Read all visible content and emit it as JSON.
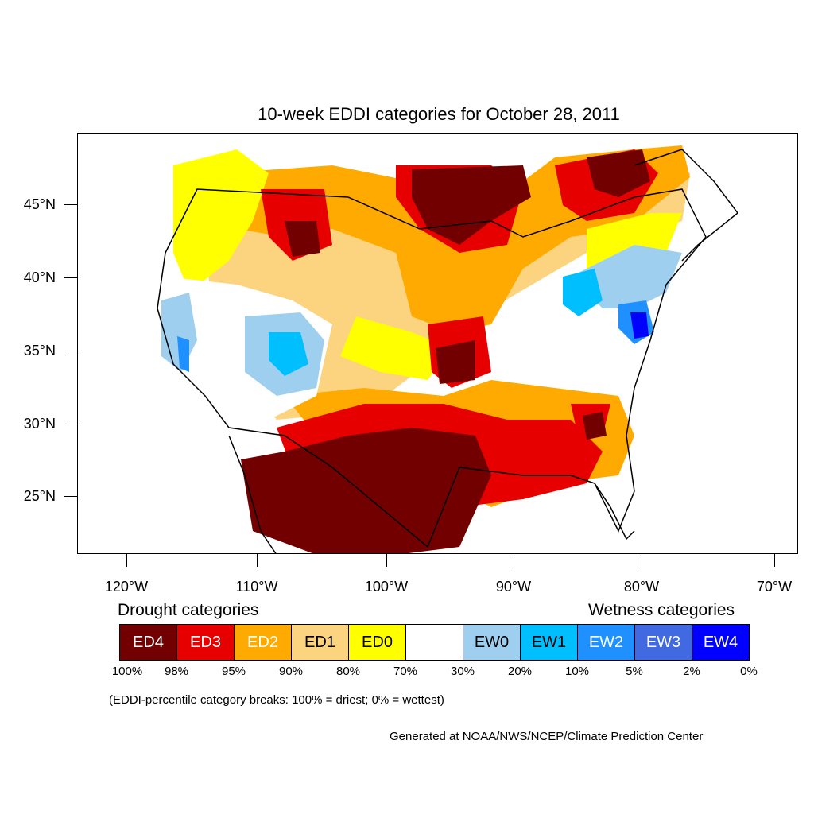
{
  "title": "10-week EDDI categories for October 28, 2011",
  "map": {
    "lat_labels": [
      "45°N",
      "40°N",
      "35°N",
      "30°N",
      "25°N"
    ],
    "lon_labels": [
      "120°W",
      "110°W",
      "100°W",
      "90°W",
      "80°W",
      "70°W"
    ]
  },
  "legend": {
    "drought_title": "Drought categories",
    "wetness_title": "Wetness categories",
    "categories": [
      {
        "label": "ED4",
        "color": "#730000",
        "text_color": "#ffffff"
      },
      {
        "label": "ED3",
        "color": "#e60000",
        "text_color": "#ffffff"
      },
      {
        "label": "ED2",
        "color": "#ffaa00",
        "text_color": "#ffffff"
      },
      {
        "label": "ED1",
        "color": "#fcd37f",
        "text_color": "#000000"
      },
      {
        "label": "ED0",
        "color": "#ffff00",
        "text_color": "#000000"
      },
      {
        "label": "",
        "color": "#ffffff",
        "text_color": "#000000"
      },
      {
        "label": "EW0",
        "color": "#9ecfef",
        "text_color": "#000000"
      },
      {
        "label": "EW1",
        "color": "#00bfff",
        "text_color": "#000000"
      },
      {
        "label": "EW2",
        "color": "#1e90ff",
        "text_color": "#ffffff"
      },
      {
        "label": "EW3",
        "color": "#4169e1",
        "text_color": "#ffffff"
      },
      {
        "label": "EW4",
        "color": "#0000ff",
        "text_color": "#ffffff"
      }
    ],
    "percentiles": [
      "100%",
      "98%",
      "95%",
      "90%",
      "80%",
      "70%",
      "30%",
      "20%",
      "10%",
      "5%",
      "2%",
      "0%"
    ]
  },
  "note": "(EDDI-percentile category breaks: 100% = driest; 0% = wettest)",
  "credit": "Generated at NOAA/NWS/NCEP/Climate Prediction Center"
}
